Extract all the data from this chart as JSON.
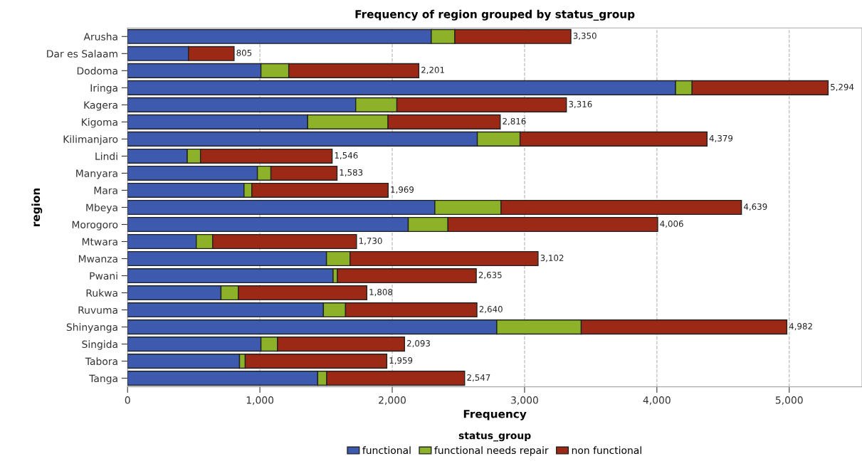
{
  "chart_data": {
    "type": "bar",
    "orientation": "horizontal",
    "stacked": true,
    "title": "Frequency of region grouped by status_group",
    "xlabel": "Frequency",
    "ylabel": "region",
    "legend_title": "status_group",
    "legend": "bottom",
    "grid": "x",
    "categories": [
      "Arusha",
      "Dar es Salaam",
      "Dodoma",
      "Iringa",
      "Kagera",
      "Kigoma",
      "Kilimanjaro",
      "Lindi",
      "Manyara",
      "Mara",
      "Mbeya",
      "Morogoro",
      "Mtwara",
      "Mwanza",
      "Pwani",
      "Rukwa",
      "Ruvuma",
      "Shinyanga",
      "Singida",
      "Tabora",
      "Tanga"
    ],
    "series": [
      {
        "name": "functional",
        "color": "#3d5aae",
        "values": [
          2295,
          460,
          1008,
          4141,
          1724,
          1361,
          2643,
          451,
          981,
          880,
          2322,
          2121,
          519,
          1503,
          1553,
          706,
          1480,
          2790,
          1008,
          846,
          1437
        ]
      },
      {
        "name": "functional needs repair",
        "color": "#8db22a",
        "values": [
          178,
          0,
          210,
          125,
          311,
          607,
          323,
          100,
          102,
          59,
          500,
          300,
          124,
          178,
          33,
          131,
          167,
          638,
          125,
          43,
          68
        ]
      },
      {
        "name": "non functional",
        "color": "#9b2915",
        "values": [
          877,
          345,
          983,
          1028,
          1281,
          848,
          1413,
          995,
          500,
          1030,
          1817,
          1585,
          1087,
          1421,
          1049,
          971,
          993,
          1554,
          960,
          1070,
          1042
        ]
      }
    ],
    "totals": [
      "3,350",
      "805",
      "2,201",
      "5,294",
      "3,316",
      "2,816",
      "4,379",
      "1,546",
      "1,583",
      "1,969",
      "4,639",
      "4,006",
      "1,730",
      "3,102",
      "2,635",
      "1,808",
      "2,640",
      "4,982",
      "2,093",
      "1,959",
      "2,547"
    ],
    "xlim": [
      0,
      5550
    ],
    "xticks": [
      {
        "value": 0,
        "label": "0"
      },
      {
        "value": 1000,
        "label": "1,000"
      },
      {
        "value": 2000,
        "label": "2,000"
      },
      {
        "value": 3000,
        "label": "3,000"
      },
      {
        "value": 4000,
        "label": "4,000"
      },
      {
        "value": 5000,
        "label": "5,000"
      }
    ]
  }
}
